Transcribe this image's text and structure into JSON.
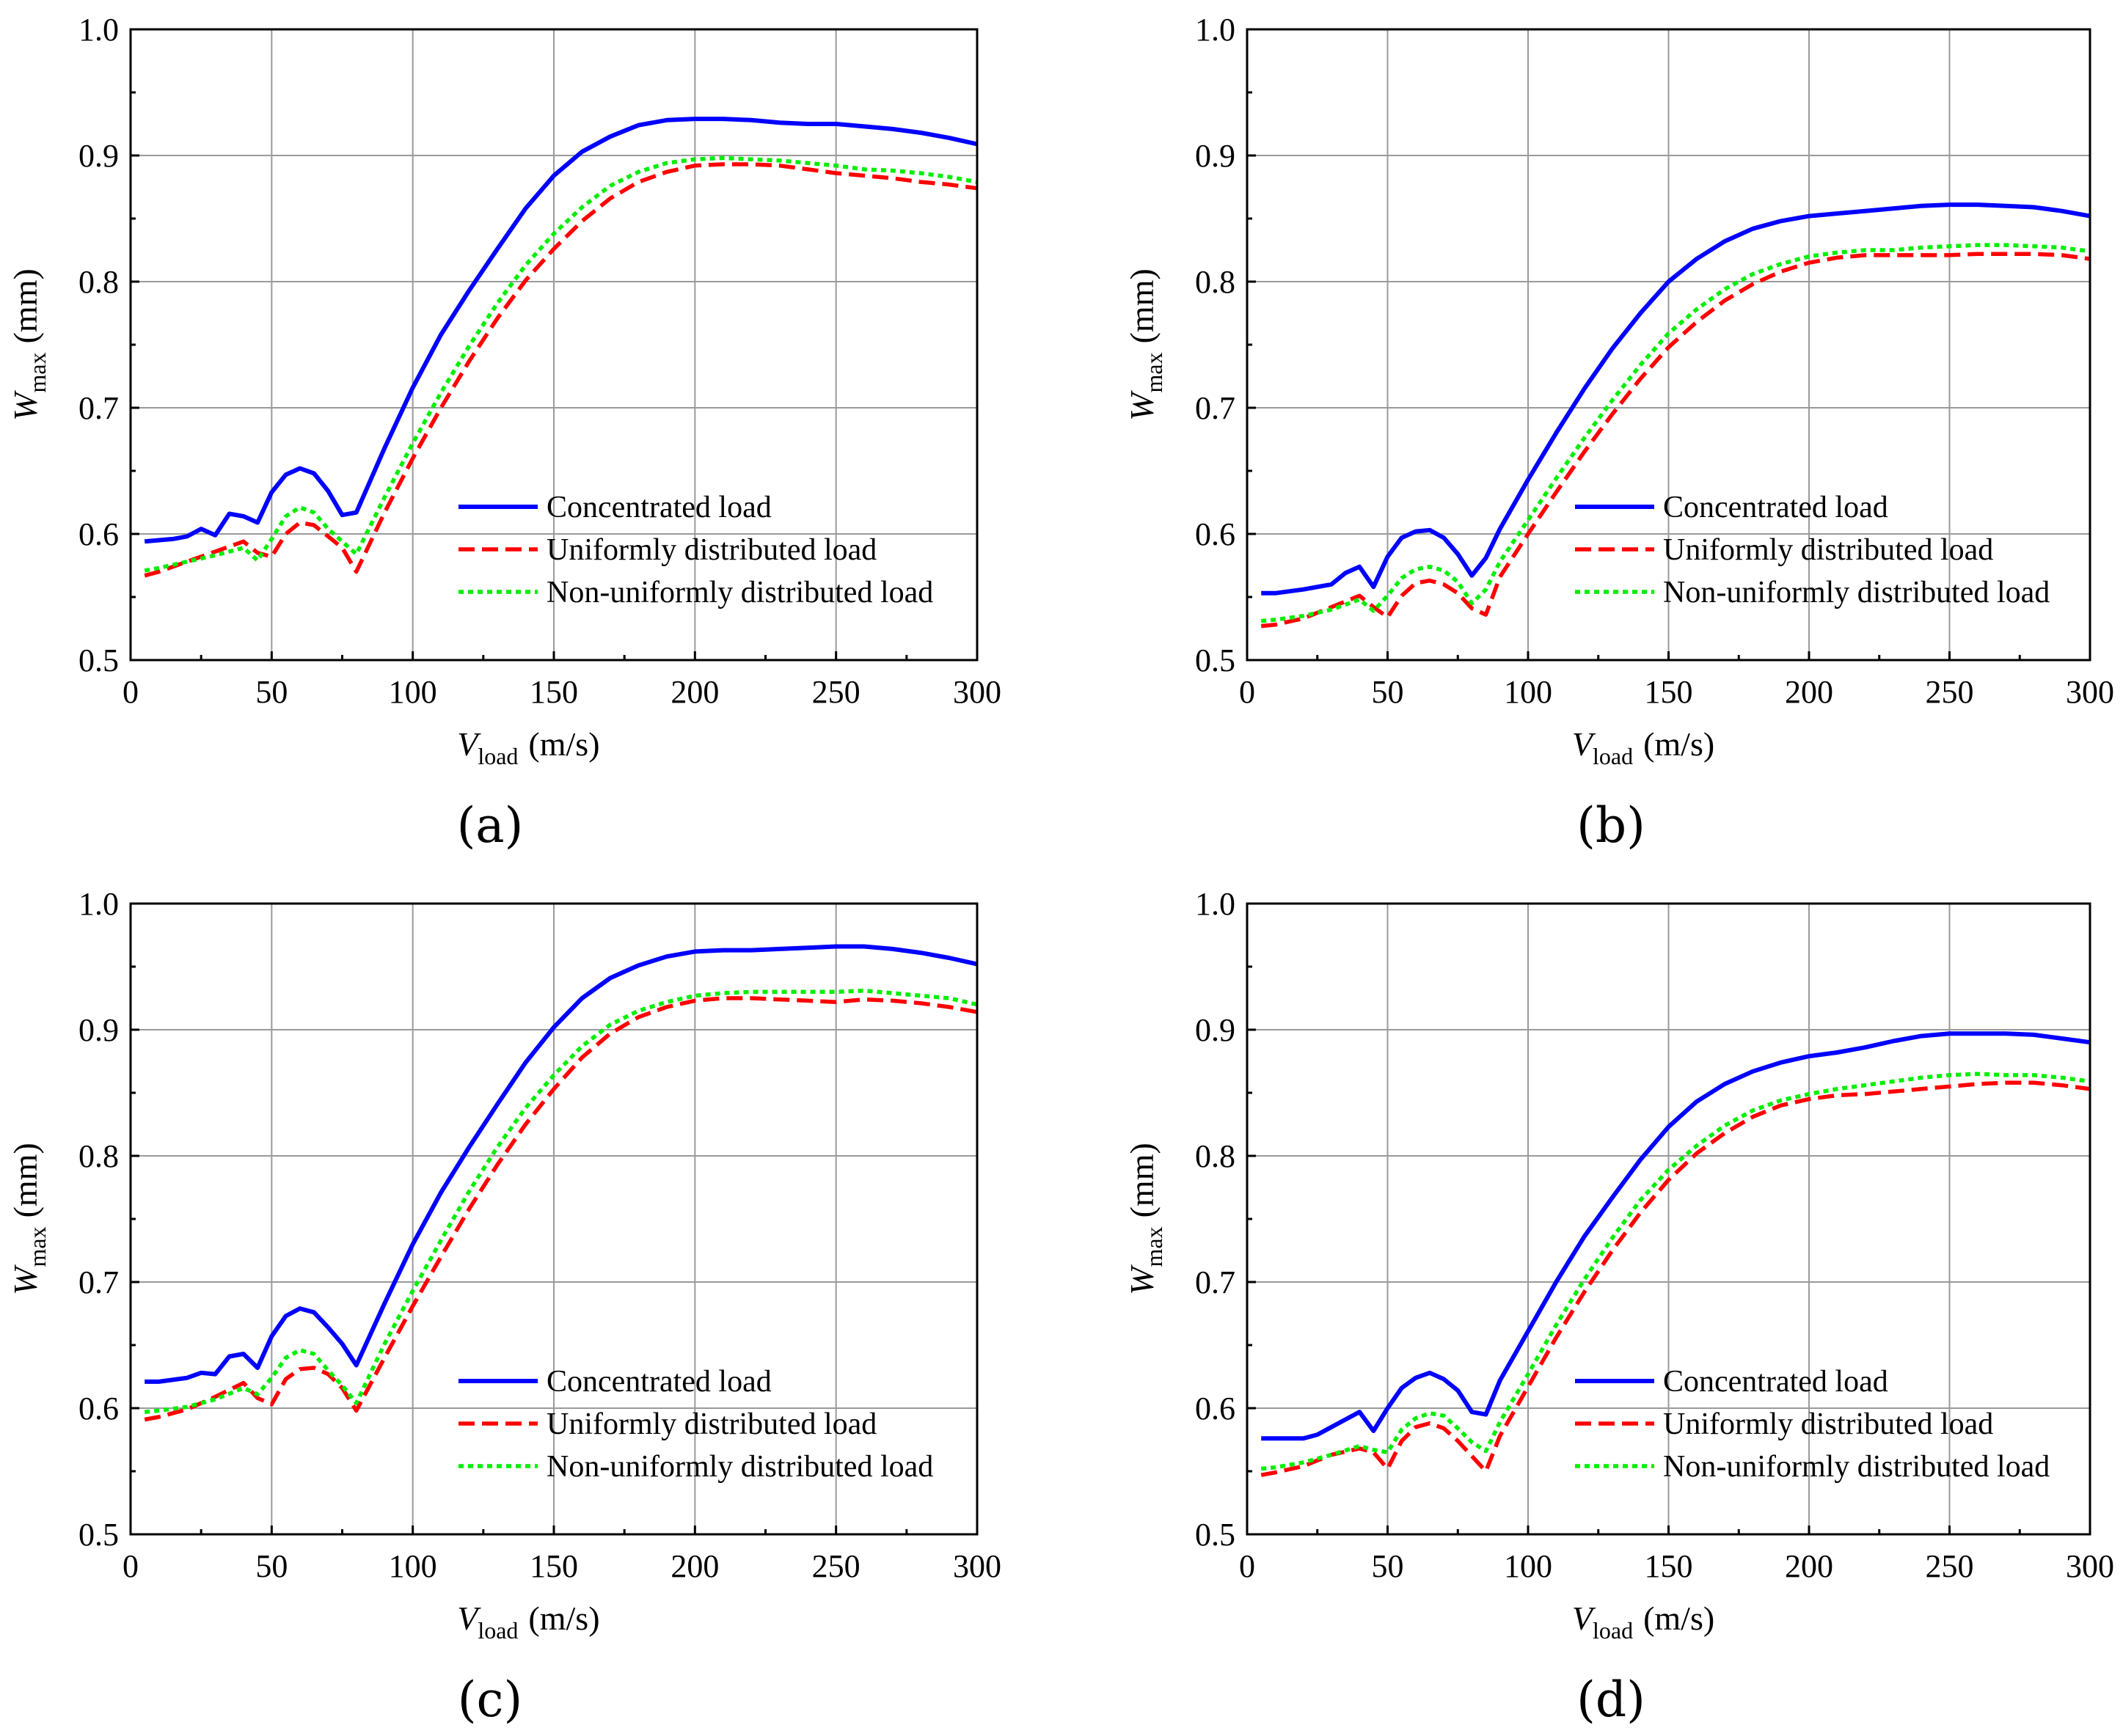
{
  "figure": {
    "legend_entries": [
      "Concentrated load",
      "Uniformly distributed load",
      "Non-uniformly distributed load"
    ],
    "colors": {
      "concentrated": "#0000ff",
      "uniform": "#ff0000",
      "nonuniform": "#00ee00"
    },
    "x_ticks": [
      "0",
      "50",
      "100",
      "150",
      "200",
      "250",
      "300"
    ],
    "y_ticks": [
      "0.5",
      "0.6",
      "0.7",
      "0.8",
      "0.9",
      "1.0"
    ],
    "xlabel_main": "V",
    "xlabel_sub": "load",
    "xlabel_unit": "(m/s)",
    "ylabel_main": "W",
    "ylabel_sub": "max",
    "ylabel_unit": "(mm)"
  },
  "chart_data": [
    {
      "type": "line",
      "panel_label": "(a)",
      "xlim": [
        0,
        300
      ],
      "ylim": [
        0.5,
        1.0
      ],
      "series": [
        {
          "name": "Concentrated load",
          "key": "concentrated",
          "style": "solid",
          "x": [
            5,
            15,
            20,
            25,
            30,
            35,
            40,
            45,
            50,
            55,
            60,
            65,
            70,
            75,
            80,
            90,
            100,
            110,
            120,
            130,
            140,
            150,
            160,
            170,
            180,
            190,
            200,
            210,
            220,
            230,
            240,
            250,
            260,
            270,
            280,
            290,
            300
          ],
          "y": [
            0.594,
            0.596,
            0.598,
            0.604,
            0.599,
            0.616,
            0.614,
            0.609,
            0.633,
            0.647,
            0.652,
            0.648,
            0.634,
            0.615,
            0.617,
            0.668,
            0.716,
            0.758,
            0.793,
            0.826,
            0.858,
            0.884,
            0.903,
            0.915,
            0.924,
            0.928,
            0.929,
            0.929,
            0.928,
            0.926,
            0.925,
            0.925,
            0.923,
            0.921,
            0.918,
            0.914,
            0.909
          ]
        },
        {
          "name": "Uniformly distributed load",
          "key": "uniform",
          "style": "dashed",
          "x": [
            5,
            10,
            20,
            30,
            40,
            45,
            50,
            55,
            60,
            65,
            70,
            75,
            80,
            90,
            100,
            110,
            120,
            130,
            140,
            150,
            160,
            170,
            180,
            190,
            200,
            210,
            220,
            230,
            240,
            250,
            260,
            270,
            280,
            290,
            300
          ],
          "y": [
            0.567,
            0.57,
            0.578,
            0.586,
            0.594,
            0.585,
            0.582,
            0.6,
            0.609,
            0.607,
            0.598,
            0.589,
            0.57,
            0.617,
            0.66,
            0.7,
            0.737,
            0.771,
            0.801,
            0.826,
            0.848,
            0.866,
            0.879,
            0.887,
            0.892,
            0.893,
            0.893,
            0.892,
            0.889,
            0.886,
            0.884,
            0.882,
            0.879,
            0.877,
            0.874
          ]
        },
        {
          "name": "Non-uniformly distributed load",
          "key": "nonuniform",
          "style": "dotted",
          "x": [
            5,
            10,
            20,
            30,
            40,
            45,
            50,
            55,
            60,
            65,
            70,
            75,
            80,
            90,
            100,
            110,
            120,
            130,
            140,
            150,
            160,
            170,
            180,
            190,
            200,
            210,
            220,
            230,
            240,
            250,
            260,
            270,
            280,
            290,
            300
          ],
          "y": [
            0.571,
            0.573,
            0.578,
            0.583,
            0.589,
            0.579,
            0.596,
            0.614,
            0.621,
            0.617,
            0.604,
            0.594,
            0.584,
            0.629,
            0.672,
            0.712,
            0.749,
            0.783,
            0.813,
            0.838,
            0.859,
            0.876,
            0.887,
            0.894,
            0.897,
            0.898,
            0.897,
            0.896,
            0.894,
            0.892,
            0.889,
            0.888,
            0.886,
            0.883,
            0.879
          ]
        }
      ]
    },
    {
      "type": "line",
      "panel_label": "(b)",
      "xlim": [
        0,
        300
      ],
      "ylim": [
        0.5,
        1.0
      ],
      "series": [
        {
          "name": "Concentrated load",
          "key": "concentrated",
          "style": "solid",
          "x": [
            5,
            10,
            20,
            30,
            35,
            40,
            45,
            50,
            55,
            60,
            65,
            70,
            75,
            80,
            85,
            90,
            100,
            110,
            120,
            130,
            140,
            150,
            160,
            170,
            180,
            190,
            200,
            210,
            220,
            230,
            240,
            250,
            260,
            270,
            280,
            290,
            300
          ],
          "y": [
            0.553,
            0.553,
            0.556,
            0.56,
            0.569,
            0.574,
            0.558,
            0.582,
            0.597,
            0.602,
            0.603,
            0.597,
            0.584,
            0.567,
            0.581,
            0.604,
            0.643,
            0.68,
            0.715,
            0.747,
            0.775,
            0.8,
            0.818,
            0.832,
            0.842,
            0.848,
            0.852,
            0.854,
            0.856,
            0.858,
            0.86,
            0.861,
            0.861,
            0.86,
            0.859,
            0.856,
            0.852
          ]
        },
        {
          "name": "Uniformly distributed load",
          "key": "uniform",
          "style": "dashed",
          "x": [
            5,
            10,
            20,
            30,
            40,
            45,
            50,
            55,
            60,
            65,
            70,
            75,
            80,
            85,
            90,
            100,
            110,
            120,
            130,
            140,
            150,
            160,
            170,
            180,
            190,
            200,
            210,
            220,
            230,
            240,
            250,
            260,
            270,
            280,
            290,
            300
          ],
          "y": [
            0.527,
            0.528,
            0.533,
            0.542,
            0.551,
            0.542,
            0.534,
            0.551,
            0.561,
            0.563,
            0.56,
            0.553,
            0.541,
            0.536,
            0.566,
            0.6,
            0.633,
            0.665,
            0.695,
            0.723,
            0.748,
            0.768,
            0.785,
            0.798,
            0.808,
            0.815,
            0.819,
            0.821,
            0.821,
            0.821,
            0.821,
            0.822,
            0.822,
            0.822,
            0.821,
            0.818
          ]
        },
        {
          "name": "Non-uniformly distributed load",
          "key": "nonuniform",
          "style": "dotted",
          "x": [
            5,
            10,
            20,
            30,
            40,
            45,
            50,
            55,
            60,
            65,
            70,
            75,
            80,
            85,
            90,
            100,
            110,
            120,
            130,
            140,
            150,
            160,
            170,
            180,
            190,
            200,
            210,
            220,
            230,
            240,
            250,
            260,
            270,
            280,
            290,
            300
          ],
          "y": [
            0.531,
            0.532,
            0.535,
            0.54,
            0.548,
            0.539,
            0.551,
            0.565,
            0.572,
            0.574,
            0.571,
            0.562,
            0.545,
            0.556,
            0.578,
            0.611,
            0.644,
            0.676,
            0.706,
            0.734,
            0.759,
            0.778,
            0.794,
            0.806,
            0.814,
            0.82,
            0.823,
            0.825,
            0.825,
            0.827,
            0.828,
            0.829,
            0.829,
            0.828,
            0.827,
            0.824
          ]
        }
      ]
    },
    {
      "type": "line",
      "panel_label": "(c)",
      "xlim": [
        0,
        300
      ],
      "ylim": [
        0.5,
        1.0
      ],
      "series": [
        {
          "name": "Concentrated load",
          "key": "concentrated",
          "style": "solid",
          "x": [
            5,
            10,
            20,
            25,
            30,
            35,
            40,
            45,
            50,
            55,
            60,
            65,
            70,
            75,
            80,
            90,
            100,
            110,
            120,
            130,
            140,
            150,
            160,
            170,
            180,
            190,
            200,
            210,
            220,
            230,
            240,
            250,
            260,
            270,
            280,
            290,
            300
          ],
          "y": [
            0.621,
            0.621,
            0.624,
            0.628,
            0.627,
            0.641,
            0.643,
            0.632,
            0.657,
            0.673,
            0.679,
            0.676,
            0.664,
            0.651,
            0.634,
            0.683,
            0.73,
            0.771,
            0.807,
            0.841,
            0.874,
            0.902,
            0.925,
            0.941,
            0.951,
            0.958,
            0.962,
            0.963,
            0.963,
            0.964,
            0.965,
            0.966,
            0.966,
            0.964,
            0.961,
            0.957,
            0.952
          ]
        },
        {
          "name": "Uniformly distributed load",
          "key": "uniform",
          "style": "dashed",
          "x": [
            5,
            10,
            20,
            30,
            40,
            45,
            50,
            55,
            60,
            65,
            70,
            75,
            80,
            90,
            100,
            110,
            120,
            130,
            140,
            150,
            160,
            170,
            180,
            190,
            200,
            210,
            220,
            230,
            240,
            250,
            260,
            270,
            280,
            290,
            300
          ],
          "y": [
            0.591,
            0.593,
            0.599,
            0.609,
            0.62,
            0.608,
            0.603,
            0.623,
            0.631,
            0.632,
            0.627,
            0.616,
            0.598,
            0.64,
            0.681,
            0.72,
            0.758,
            0.793,
            0.825,
            0.853,
            0.878,
            0.897,
            0.91,
            0.918,
            0.923,
            0.925,
            0.925,
            0.924,
            0.923,
            0.922,
            0.924,
            0.923,
            0.921,
            0.918,
            0.914
          ]
        },
        {
          "name": "Non-uniformly distributed load",
          "key": "nonuniform",
          "style": "dotted",
          "x": [
            5,
            10,
            20,
            30,
            40,
            45,
            50,
            55,
            60,
            65,
            70,
            75,
            80,
            90,
            100,
            110,
            120,
            130,
            140,
            150,
            160,
            170,
            180,
            190,
            200,
            210,
            220,
            230,
            240,
            250,
            260,
            270,
            280,
            290,
            300
          ],
          "y": [
            0.597,
            0.598,
            0.601,
            0.607,
            0.616,
            0.611,
            0.624,
            0.64,
            0.646,
            0.643,
            0.63,
            0.618,
            0.604,
            0.651,
            0.693,
            0.733,
            0.772,
            0.807,
            0.838,
            0.864,
            0.887,
            0.904,
            0.915,
            0.922,
            0.927,
            0.929,
            0.93,
            0.93,
            0.93,
            0.93,
            0.931,
            0.929,
            0.927,
            0.925,
            0.92
          ]
        }
      ]
    },
    {
      "type": "line",
      "panel_label": "(d)",
      "xlim": [
        0,
        300
      ],
      "ylim": [
        0.5,
        1.0
      ],
      "series": [
        {
          "name": "Concentrated load",
          "key": "concentrated",
          "style": "solid",
          "x": [
            5,
            10,
            20,
            25,
            30,
            35,
            40,
            45,
            50,
            55,
            60,
            65,
            70,
            75,
            80,
            85,
            90,
            100,
            110,
            120,
            130,
            140,
            150,
            160,
            170,
            180,
            190,
            200,
            210,
            220,
            230,
            240,
            250,
            260,
            270,
            280,
            290,
            300
          ],
          "y": [
            0.576,
            0.576,
            0.576,
            0.579,
            0.585,
            0.591,
            0.597,
            0.582,
            0.6,
            0.616,
            0.624,
            0.628,
            0.623,
            0.614,
            0.597,
            0.595,
            0.622,
            0.661,
            0.7,
            0.736,
            0.767,
            0.797,
            0.823,
            0.843,
            0.857,
            0.867,
            0.874,
            0.879,
            0.882,
            0.886,
            0.891,
            0.895,
            0.897,
            0.897,
            0.897,
            0.896,
            0.893,
            0.89
          ]
        },
        {
          "name": "Uniformly distributed load",
          "key": "uniform",
          "style": "dashed",
          "x": [
            5,
            10,
            20,
            30,
            40,
            45,
            50,
            55,
            60,
            65,
            70,
            75,
            80,
            85,
            90,
            100,
            110,
            120,
            130,
            140,
            150,
            160,
            170,
            180,
            190,
            200,
            210,
            220,
            230,
            240,
            250,
            260,
            270,
            280,
            290,
            300
          ],
          "y": [
            0.547,
            0.549,
            0.554,
            0.563,
            0.568,
            0.565,
            0.552,
            0.574,
            0.585,
            0.588,
            0.584,
            0.574,
            0.562,
            0.55,
            0.578,
            0.617,
            0.656,
            0.692,
            0.725,
            0.755,
            0.781,
            0.802,
            0.818,
            0.831,
            0.84,
            0.845,
            0.848,
            0.849,
            0.851,
            0.853,
            0.855,
            0.857,
            0.858,
            0.858,
            0.856,
            0.853
          ]
        },
        {
          "name": "Non-uniformly distributed load",
          "key": "nonuniform",
          "style": "dotted",
          "x": [
            5,
            10,
            20,
            30,
            40,
            45,
            50,
            55,
            60,
            65,
            70,
            75,
            80,
            85,
            90,
            100,
            110,
            120,
            130,
            140,
            150,
            160,
            170,
            180,
            190,
            200,
            210,
            220,
            230,
            240,
            250,
            260,
            270,
            280,
            290,
            300
          ],
          "y": [
            0.552,
            0.553,
            0.557,
            0.563,
            0.57,
            0.567,
            0.565,
            0.583,
            0.592,
            0.596,
            0.594,
            0.584,
            0.573,
            0.566,
            0.589,
            0.627,
            0.666,
            0.702,
            0.735,
            0.765,
            0.789,
            0.808,
            0.824,
            0.836,
            0.844,
            0.849,
            0.853,
            0.856,
            0.859,
            0.862,
            0.864,
            0.865,
            0.864,
            0.864,
            0.862,
            0.859
          ]
        }
      ]
    }
  ]
}
